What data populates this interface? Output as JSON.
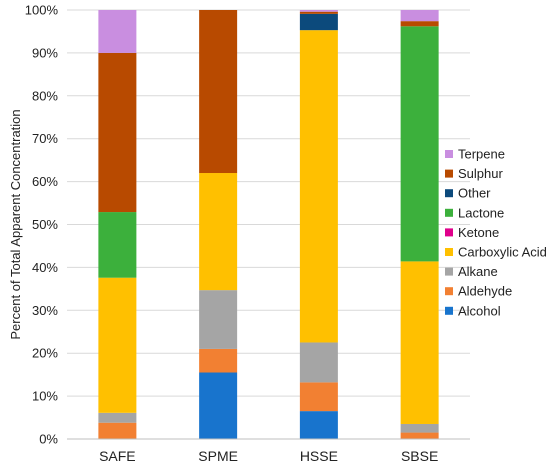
{
  "chart_data": {
    "type": "bar",
    "stacked": true,
    "categories": [
      "SAFE",
      "SPME",
      "HSSE",
      "SBSE"
    ],
    "ylabel": "Percent of Total Apparent Concentration",
    "xlabel": "",
    "ylim": [
      0,
      100
    ],
    "yticks": [
      "0%",
      "10%",
      "20%",
      "30%",
      "40%",
      "50%",
      "60%",
      "70%",
      "80%",
      "90%",
      "100%"
    ],
    "grid": true,
    "legend_position": "right",
    "series": [
      {
        "name": "Alcohol",
        "color": "#1874CD",
        "values": [
          0,
          15.5,
          6.5,
          0
        ]
      },
      {
        "name": "Aldehyde",
        "color": "#F28032",
        "values": [
          3.8,
          5.5,
          6.7,
          1.5
        ]
      },
      {
        "name": "Alkane",
        "color": "#A5A5A5",
        "values": [
          2.3,
          13.7,
          9.3,
          2.0
        ]
      },
      {
        "name": "Carboxylic Acid",
        "color": "#FFC000",
        "values": [
          31.5,
          27.3,
          72.8,
          37.9
        ]
      },
      {
        "name": "Ketone",
        "color": "#E0008B",
        "values": [
          0,
          0,
          0,
          0
        ]
      },
      {
        "name": "Lactone",
        "color": "#3CB03C",
        "values": [
          15.3,
          0,
          0,
          54.8
        ]
      },
      {
        "name": "Other",
        "color": "#0C4A7C",
        "values": [
          0,
          0,
          3.8,
          0
        ]
      },
      {
        "name": "Sulphur",
        "color": "#B84A00",
        "values": [
          37.1,
          38.0,
          0.5,
          1.2
        ]
      },
      {
        "name": "Terpene",
        "color": "#C98EE0",
        "values": [
          10.0,
          0,
          0.4,
          2.6
        ]
      }
    ]
  }
}
